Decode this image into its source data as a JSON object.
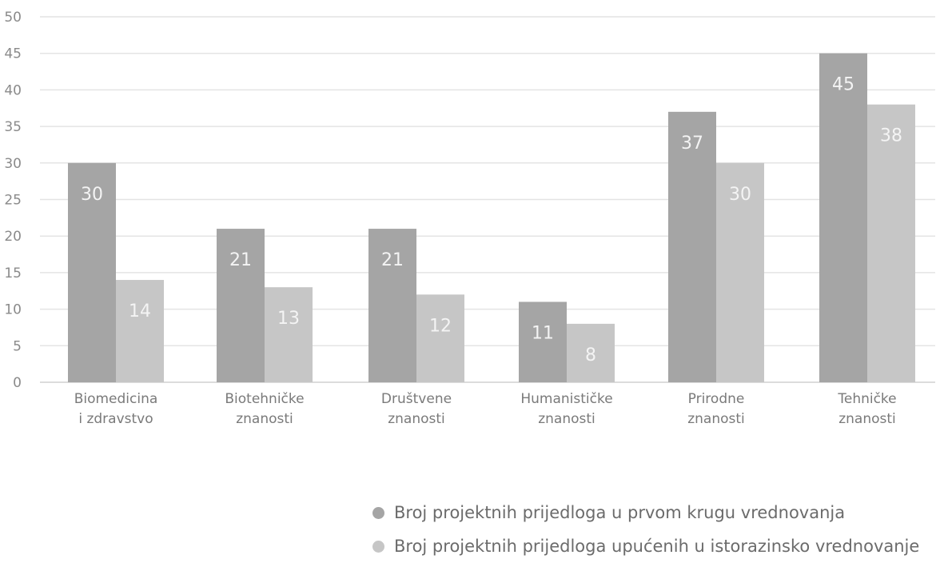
{
  "chart_data": {
    "type": "bar",
    "categories": [
      [
        "Biomedicina",
        "i zdravstvo"
      ],
      [
        "Biotehničke",
        "znanosti"
      ],
      [
        "Društvene",
        "znanosti"
      ],
      [
        "Humanističke",
        "znanosti"
      ],
      [
        "Prirodne",
        "znanosti"
      ],
      [
        "Tehničke",
        "znanosti"
      ]
    ],
    "series": [
      {
        "name": "Broj projektnih prijedloga u prvom krugu vrednovanja",
        "values": [
          30,
          21,
          21,
          11,
          37,
          45
        ],
        "color": "#a5a5a5"
      },
      {
        "name": "Broj projektnih prijedloga upućenih u istorazinsko vrednovanje",
        "values": [
          14,
          13,
          12,
          8,
          30,
          38
        ],
        "color": "#c6c6c6"
      }
    ],
    "ylim": [
      0,
      50
    ],
    "yticks": [
      0,
      5,
      10,
      15,
      20,
      25,
      30,
      35,
      40,
      45,
      50
    ],
    "grid": true,
    "legend_position": "bottom-right"
  }
}
